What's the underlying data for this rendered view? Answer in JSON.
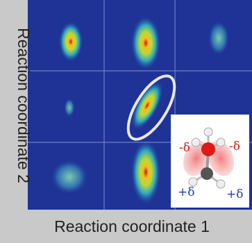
{
  "axes": {
    "x_label": "Reaction coordinate 1",
    "y_label": "Reaction coordinate 2"
  },
  "inset": {
    "labels": [
      "-δ",
      "-δ",
      "+δ",
      "+δ"
    ]
  }
}
